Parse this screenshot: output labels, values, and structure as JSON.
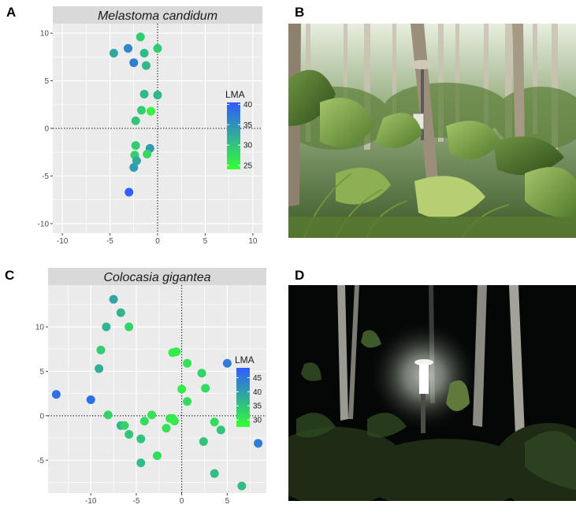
{
  "panels": {
    "a": "A",
    "b": "B",
    "c": "C",
    "d": "D"
  },
  "colors": {
    "low": "#33ff33",
    "high": "#2f5bff",
    "panel_bg": "#ebebeb",
    "strip_bg": "#d9d9d9",
    "grid": "#ffffff"
  },
  "chart_data": [
    {
      "type": "scatter",
      "title": "Melastoma candidum",
      "xlabel": "",
      "ylabel": "",
      "xlim": [
        -11,
        11
      ],
      "ylim": [
        -11,
        11
      ],
      "xticks": [
        -10,
        -5,
        0,
        5,
        10
      ],
      "yticks": [
        -10,
        -5,
        0,
        5,
        10
      ],
      "xtick_labels": [
        "-10",
        "-5",
        "0",
        "5",
        "10"
      ],
      "ytick_labels": [
        "-10",
        "-5",
        "0",
        "5",
        "10"
      ],
      "reference_lines": {
        "x": 0,
        "y": 0,
        "style": "dotted"
      },
      "grid": true,
      "legend": {
        "title": "LMA",
        "placement": "right-inside",
        "range": [
          24,
          40.5
        ],
        "ticks": [
          40,
          35,
          30,
          25
        ],
        "tick_labels": [
          "40",
          "35",
          "30",
          "25"
        ]
      },
      "points": [
        {
          "x": -1.8,
          "y": 9.6,
          "lma": 29
        },
        {
          "x": -3.1,
          "y": 8.4,
          "lma": 36
        },
        {
          "x": -4.6,
          "y": 7.9,
          "lma": 33
        },
        {
          "x": -1.4,
          "y": 7.9,
          "lma": 31
        },
        {
          "x": 0.0,
          "y": 8.4,
          "lma": 29
        },
        {
          "x": -2.5,
          "y": 6.9,
          "lma": 37
        },
        {
          "x": -1.2,
          "y": 6.6,
          "lma": 31
        },
        {
          "x": -1.4,
          "y": 3.6,
          "lma": 31
        },
        {
          "x": 0.0,
          "y": 3.5,
          "lma": 31
        },
        {
          "x": -1.7,
          "y": 1.9,
          "lma": 29
        },
        {
          "x": -0.7,
          "y": 1.8,
          "lma": 25
        },
        {
          "x": -2.3,
          "y": 0.8,
          "lma": 30
        },
        {
          "x": -2.3,
          "y": -1.8,
          "lma": 29
        },
        {
          "x": -0.8,
          "y": -2.1,
          "lma": 34
        },
        {
          "x": -2.4,
          "y": -2.8,
          "lma": 29
        },
        {
          "x": -1.1,
          "y": -2.7,
          "lma": 28
        },
        {
          "x": -2.2,
          "y": -3.4,
          "lma": 33
        },
        {
          "x": -2.5,
          "y": -4.1,
          "lma": 34
        },
        {
          "x": -3.0,
          "y": -6.7,
          "lma": 40
        }
      ]
    },
    {
      "type": "scatter",
      "title": "Colocasia gigantea",
      "xlabel": "",
      "ylabel": "",
      "xlim": [
        -14.7,
        9.3
      ],
      "ylim": [
        -8.7,
        14.7
      ],
      "xticks": [
        -10,
        -5,
        0,
        5
      ],
      "yticks": [
        -5,
        0,
        5,
        10
      ],
      "xtick_labels": [
        "-10",
        "-5",
        "0",
        "5"
      ],
      "ytick_labels": [
        "-5",
        "0",
        "5",
        "10"
      ],
      "reference_lines": {
        "x": 0,
        "y": 0,
        "style": "dotted"
      },
      "grid": true,
      "legend": {
        "title": "LMA",
        "placement": "right-inside",
        "range": [
          27.5,
          48.5
        ],
        "ticks": [
          45,
          40,
          35,
          30
        ],
        "tick_labels": [
          "45",
          "40",
          "35",
          "30"
        ]
      },
      "points": [
        {
          "x": -7.5,
          "y": 13.1,
          "lma": 39
        },
        {
          "x": -6.7,
          "y": 11.6,
          "lma": 37
        },
        {
          "x": -8.3,
          "y": 10.0,
          "lma": 37
        },
        {
          "x": -5.8,
          "y": 10.0,
          "lma": 33
        },
        {
          "x": -8.9,
          "y": 7.4,
          "lma": 34
        },
        {
          "x": -9.1,
          "y": 5.3,
          "lma": 38
        },
        {
          "x": -13.8,
          "y": 2.4,
          "lma": 46
        },
        {
          "x": -10.0,
          "y": 1.8,
          "lma": 46
        },
        {
          "x": -8.1,
          "y": 0.1,
          "lma": 33
        },
        {
          "x": -6.7,
          "y": -1.1,
          "lma": 37
        },
        {
          "x": -6.3,
          "y": -1.1,
          "lma": 33
        },
        {
          "x": -5.8,
          "y": -2.1,
          "lma": 35
        },
        {
          "x": -4.5,
          "y": -2.6,
          "lma": 35
        },
        {
          "x": -4.5,
          "y": -5.3,
          "lma": 36
        },
        {
          "x": -4.1,
          "y": -0.6,
          "lma": 32
        },
        {
          "x": -3.3,
          "y": 0.1,
          "lma": 31
        },
        {
          "x": -2.7,
          "y": -4.5,
          "lma": 32
        },
        {
          "x": -1.7,
          "y": -1.4,
          "lma": 31
        },
        {
          "x": -1.3,
          "y": -0.3,
          "lma": 31
        },
        {
          "x": -1.0,
          "y": -0.3,
          "lma": 30
        },
        {
          "x": -0.8,
          "y": -0.6,
          "lma": 30
        },
        {
          "x": -1.0,
          "y": 7.1,
          "lma": 30
        },
        {
          "x": -0.6,
          "y": 7.2,
          "lma": 30
        },
        {
          "x": 0.0,
          "y": 3.0,
          "lma": 30
        },
        {
          "x": 0.6,
          "y": 5.9,
          "lma": 31
        },
        {
          "x": 0.6,
          "y": 1.6,
          "lma": 32
        },
        {
          "x": 2.2,
          "y": 4.8,
          "lma": 33
        },
        {
          "x": 2.6,
          "y": 3.1,
          "lma": 32
        },
        {
          "x": 2.4,
          "y": -2.9,
          "lma": 35
        },
        {
          "x": 3.6,
          "y": -0.7,
          "lma": 32
        },
        {
          "x": 3.6,
          "y": -6.5,
          "lma": 36
        },
        {
          "x": 4.3,
          "y": -1.6,
          "lma": 35
        },
        {
          "x": 5.0,
          "y": 5.9,
          "lma": 44
        },
        {
          "x": 6.6,
          "y": -7.9,
          "lma": 36
        },
        {
          "x": 8.4,
          "y": -3.1,
          "lma": 44
        }
      ]
    }
  ]
}
